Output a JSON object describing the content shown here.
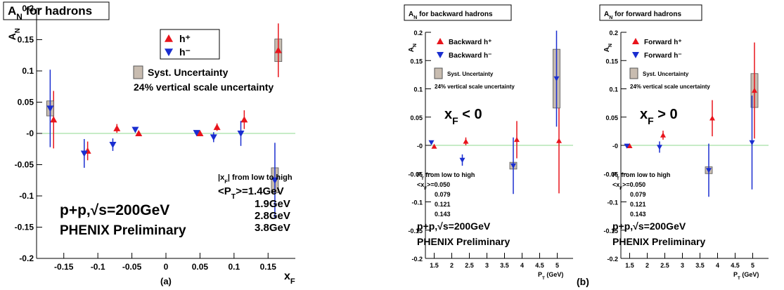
{
  "chart_data": [
    {
      "type": "scatter",
      "title": {
        "base": "A",
        "sub": "N",
        "after": " for hadrons"
      },
      "xlabel": {
        "base": "x",
        "sub": "F"
      },
      "ylabel": {
        "base": "A",
        "sub": "N"
      },
      "xlim": [
        -0.19,
        0.19
      ],
      "ylim": [
        -0.2,
        0.2
      ],
      "xticks": [
        -0.15,
        -0.1,
        -0.05,
        0,
        0.05,
        0.1,
        0.15
      ],
      "yticks": [
        -0.2,
        -0.15,
        -0.1,
        -0.05,
        {
          "value": 0,
          "label": "-0"
        },
        0.05,
        0.1,
        0.15,
        0.2
      ],
      "zero_line_color": "#8fd88f",
      "series": [
        {
          "name": "h⁺",
          "color": "#e8141c",
          "marker": "triangle-up",
          "x": [
            -0.165,
            -0.115,
            -0.072,
            -0.04,
            0.05,
            0.075,
            0.115,
            0.165
          ],
          "values": [
            0.022,
            -0.028,
            0.008,
            0.0,
            0.0,
            0.01,
            0.022,
            0.133
          ],
          "errors": [
            0.046,
            0.015,
            0.007,
            0.004,
            0.003,
            0.006,
            0.015,
            0.043
          ],
          "syst": [
            null,
            null,
            null,
            null,
            null,
            null,
            null,
            0.018
          ]
        },
        {
          "name": "h⁻",
          "color": "#1a2ed0",
          "marker": "triangle-down",
          "x": [
            -0.17,
            -0.12,
            -0.078,
            -0.045,
            0.045,
            0.07,
            0.11,
            0.16
          ],
          "values": [
            0.04,
            -0.032,
            -0.018,
            0.006,
            0.001,
            -0.006,
            0.0,
            -0.075
          ],
          "errors": [
            0.062,
            0.023,
            0.01,
            0.004,
            0.003,
            0.008,
            0.02,
            0.06
          ],
          "syst": [
            0.012,
            null,
            null,
            null,
            null,
            null,
            null,
            0.02
          ]
        }
      ],
      "annotations": [
        {
          "base": "Syst. Uncertainty"
        },
        {
          "base": "24% vertical scale uncertainty"
        },
        {
          "base": "|x",
          "sub": "F",
          "after": "| from low to high"
        },
        {
          "base": "<P",
          "sub": "T",
          "after": ">=1.4GeV"
        },
        {
          "base": "1.9GeV"
        },
        {
          "base": "2.8GeV"
        },
        {
          "base": "3.8GeV"
        },
        {
          "base": "p+p,√s=200GeV"
        },
        {
          "base": "PHENIX Preliminary",
          "color": "#e020e0"
        },
        {
          "base": "(a)"
        }
      ]
    },
    {
      "type": "scatter",
      "title": {
        "base": "A",
        "sub": "N",
        "after": " for backward hadrons"
      },
      "xlabel": {
        "base": "P",
        "sub": "T",
        "after": " (GeV)"
      },
      "ylabel": {
        "base": "A",
        "sub": "N"
      },
      "xlim": [
        1.25,
        5.45
      ],
      "ylim": [
        -0.2,
        0.2
      ],
      "xticks": [
        1.5,
        2,
        2.5,
        3,
        3.5,
        4,
        4.5,
        5
      ],
      "yticks": [
        -0.2,
        -0.15,
        -0.1,
        -0.05,
        {
          "value": 0,
          "label": "-0"
        },
        0.05,
        0.1,
        0.15,
        0.2
      ],
      "zero_line_color": "#8fd88f",
      "series": [
        {
          "name": "Backward h⁺",
          "color": "#e8141c",
          "marker": "triangle-up",
          "x": [
            1.5,
            2.4,
            3.85,
            5.05
          ],
          "values": [
            -0.002,
            0.007,
            0.01,
            0.008
          ],
          "errors": [
            0.003,
            0.007,
            0.033,
            0.093
          ],
          "syst": [
            null,
            null,
            null,
            null
          ]
        },
        {
          "name": "Backward h⁻",
          "color": "#1a2ed0",
          "marker": "triangle-down",
          "x": [
            1.42,
            2.3,
            3.75,
            4.98
          ],
          "values": [
            0.005,
            -0.026,
            -0.036,
            0.118
          ],
          "errors": [
            0.003,
            0.01,
            0.05,
            0.085
          ],
          "syst": [
            null,
            null,
            0.006,
            0.052
          ]
        }
      ],
      "annotations": [
        {
          "base": "Syst. Uncertainty"
        },
        {
          "base": "24% vertical scale uncertainty"
        },
        {
          "base": "x",
          "sub": "F",
          "after": " < 0"
        },
        {
          "base": "P",
          "sub": "T",
          "after": " from low to high"
        },
        {
          "base": "<x",
          "sub": "F",
          "after": ">=0.050"
        },
        {
          "base": "0.079"
        },
        {
          "base": "0.121"
        },
        {
          "base": "0.143"
        },
        {
          "base": "p+p,√s=200GeV"
        },
        {
          "base": "PHENIX Preliminary",
          "color": "#e020e0"
        },
        {
          "base": "(b)"
        }
      ]
    },
    {
      "type": "scatter",
      "title": {
        "base": "A",
        "sub": "N",
        "after": " for forward hadrons"
      },
      "xlabel": {
        "base": "P",
        "sub": "T",
        "after": " (GeV)"
      },
      "ylabel": {
        "base": "A",
        "sub": "N"
      },
      "xlim": [
        1.25,
        5.45
      ],
      "ylim": [
        -0.2,
        0.2
      ],
      "xticks": [
        1.5,
        2,
        2.5,
        3,
        3.5,
        4,
        4.5,
        5
      ],
      "yticks": [
        -0.2,
        -0.15,
        -0.1,
        -0.05,
        {
          "value": 0,
          "label": "-0"
        },
        0.05,
        0.1,
        0.15,
        0.2
      ],
      "zero_line_color": "#8fd88f",
      "series": [
        {
          "name": "Forward h⁺",
          "color": "#e8141c",
          "marker": "triangle-up",
          "x": [
            1.5,
            2.45,
            3.85,
            5.05
          ],
          "values": [
            -0.001,
            0.018,
            0.048,
            0.097
          ],
          "errors": [
            0.003,
            0.008,
            0.032,
            0.085
          ],
          "syst": [
            null,
            null,
            null,
            0.03
          ]
        },
        {
          "name": "Forward h⁻",
          "color": "#1a2ed0",
          "marker": "triangle-down",
          "x": [
            1.42,
            2.35,
            3.75,
            4.98
          ],
          "values": [
            -0.001,
            -0.003,
            -0.044,
            0.005
          ],
          "errors": [
            0.003,
            0.01,
            0.047,
            0.083
          ],
          "syst": [
            null,
            null,
            0.006,
            null
          ]
        }
      ],
      "annotations": [
        {
          "base": "Syst. Uncertainty"
        },
        {
          "base": "24% vertical scale uncertainty"
        },
        {
          "base": "x",
          "sub": "F",
          "after": " > 0"
        },
        {
          "base": "P",
          "sub": "T",
          "after": " from low to high"
        },
        {
          "base": "<x",
          "sub": "F",
          "after": ">=0.050"
        },
        {
          "base": "0.079"
        },
        {
          "base": "0.121"
        },
        {
          "base": "0.143"
        },
        {
          "base": "p+p,√s=200GeV"
        },
        {
          "base": "PHENIX Preliminary",
          "color": "#e020e0"
        }
      ]
    }
  ]
}
